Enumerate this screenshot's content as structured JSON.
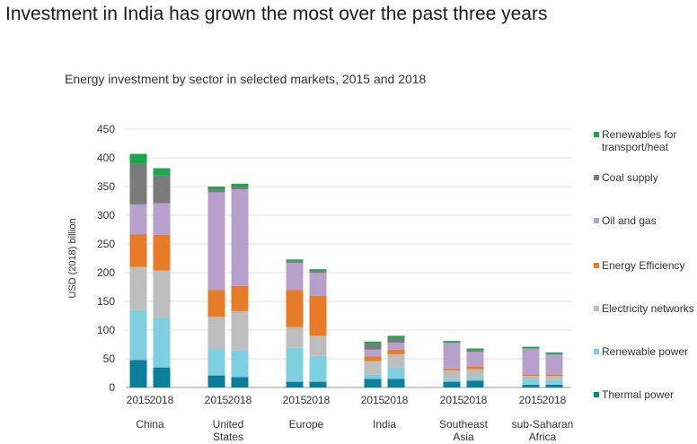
{
  "headline": "Investment in India has grown the most over the past three years",
  "chart_data": {
    "type": "bar",
    "stacked": true,
    "title": "Energy investment by sector in selected markets, 2015 and 2018",
    "ylabel": "USD (2018) billion",
    "ylim": [
      0,
      450
    ],
    "yticks": [
      0,
      50,
      100,
      150,
      200,
      250,
      300,
      350,
      400,
      450
    ],
    "grid": true,
    "legend_position": "right",
    "groups": [
      {
        "label_lines": [
          "China"
        ],
        "years": [
          "2015",
          "2018"
        ]
      },
      {
        "label_lines": [
          "United",
          "States"
        ],
        "years": [
          "2015",
          "2018"
        ]
      },
      {
        "label_lines": [
          "Europe"
        ],
        "years": [
          "2015",
          "2018"
        ]
      },
      {
        "label_lines": [
          "India"
        ],
        "years": [
          "2015",
          "2018"
        ]
      },
      {
        "label_lines": [
          "Southeast",
          "Asia"
        ],
        "years": [
          "2015",
          "2018"
        ]
      },
      {
        "label_lines": [
          "sub-Saharan",
          "Africa"
        ],
        "years": [
          "2015",
          "2018"
        ]
      }
    ],
    "series": [
      {
        "name": "Thermal power",
        "color": "#0b7f9a",
        "values": [
          [
            48,
            35
          ],
          [
            21,
            18
          ],
          [
            10,
            10
          ],
          [
            15,
            15
          ],
          [
            10,
            12
          ],
          [
            5,
            5
          ]
        ]
      },
      {
        "name": "Renewable power",
        "color": "#7ecfe0",
        "values": [
          [
            87,
            87
          ],
          [
            47,
            47
          ],
          [
            60,
            45
          ],
          [
            8,
            20
          ],
          [
            5,
            5
          ],
          [
            10,
            8
          ]
        ]
      },
      {
        "name": "Electricity networks",
        "color": "#bdbdbd",
        "values": [
          [
            75,
            82
          ],
          [
            55,
            68
          ],
          [
            35,
            35
          ],
          [
            23,
            23
          ],
          [
            15,
            15
          ],
          [
            5,
            7
          ]
        ]
      },
      {
        "name": "Energy Efficiency",
        "color": "#e87b27",
        "values": [
          [
            57,
            62
          ],
          [
            47,
            44
          ],
          [
            65,
            70
          ],
          [
            8,
            8
          ],
          [
            3,
            5
          ],
          [
            3,
            3
          ]
        ]
      },
      {
        "name": "Oil and gas",
        "color": "#b7a0cc",
        "values": [
          [
            52,
            55
          ],
          [
            170,
            168
          ],
          [
            47,
            40
          ],
          [
            12,
            12
          ],
          [
            45,
            25
          ],
          [
            45,
            35
          ]
        ]
      },
      {
        "name": "Coal supply",
        "color": "#7a7a7a",
        "values": [
          [
            71,
            48
          ],
          [
            5,
            5
          ],
          [
            3,
            3
          ],
          [
            10,
            8
          ],
          [
            0,
            3
          ],
          [
            0,
            0
          ]
        ]
      },
      {
        "name": "Renewables for transport/heat",
        "label_lines": [
          "Renewables for",
          "transport/heat"
        ],
        "color": "#1aa64a",
        "values": [
          [
            17,
            13
          ],
          [
            5,
            5
          ],
          [
            3,
            3
          ],
          [
            4,
            4
          ],
          [
            3,
            3
          ],
          [
            3,
            3
          ]
        ]
      }
    ]
  }
}
